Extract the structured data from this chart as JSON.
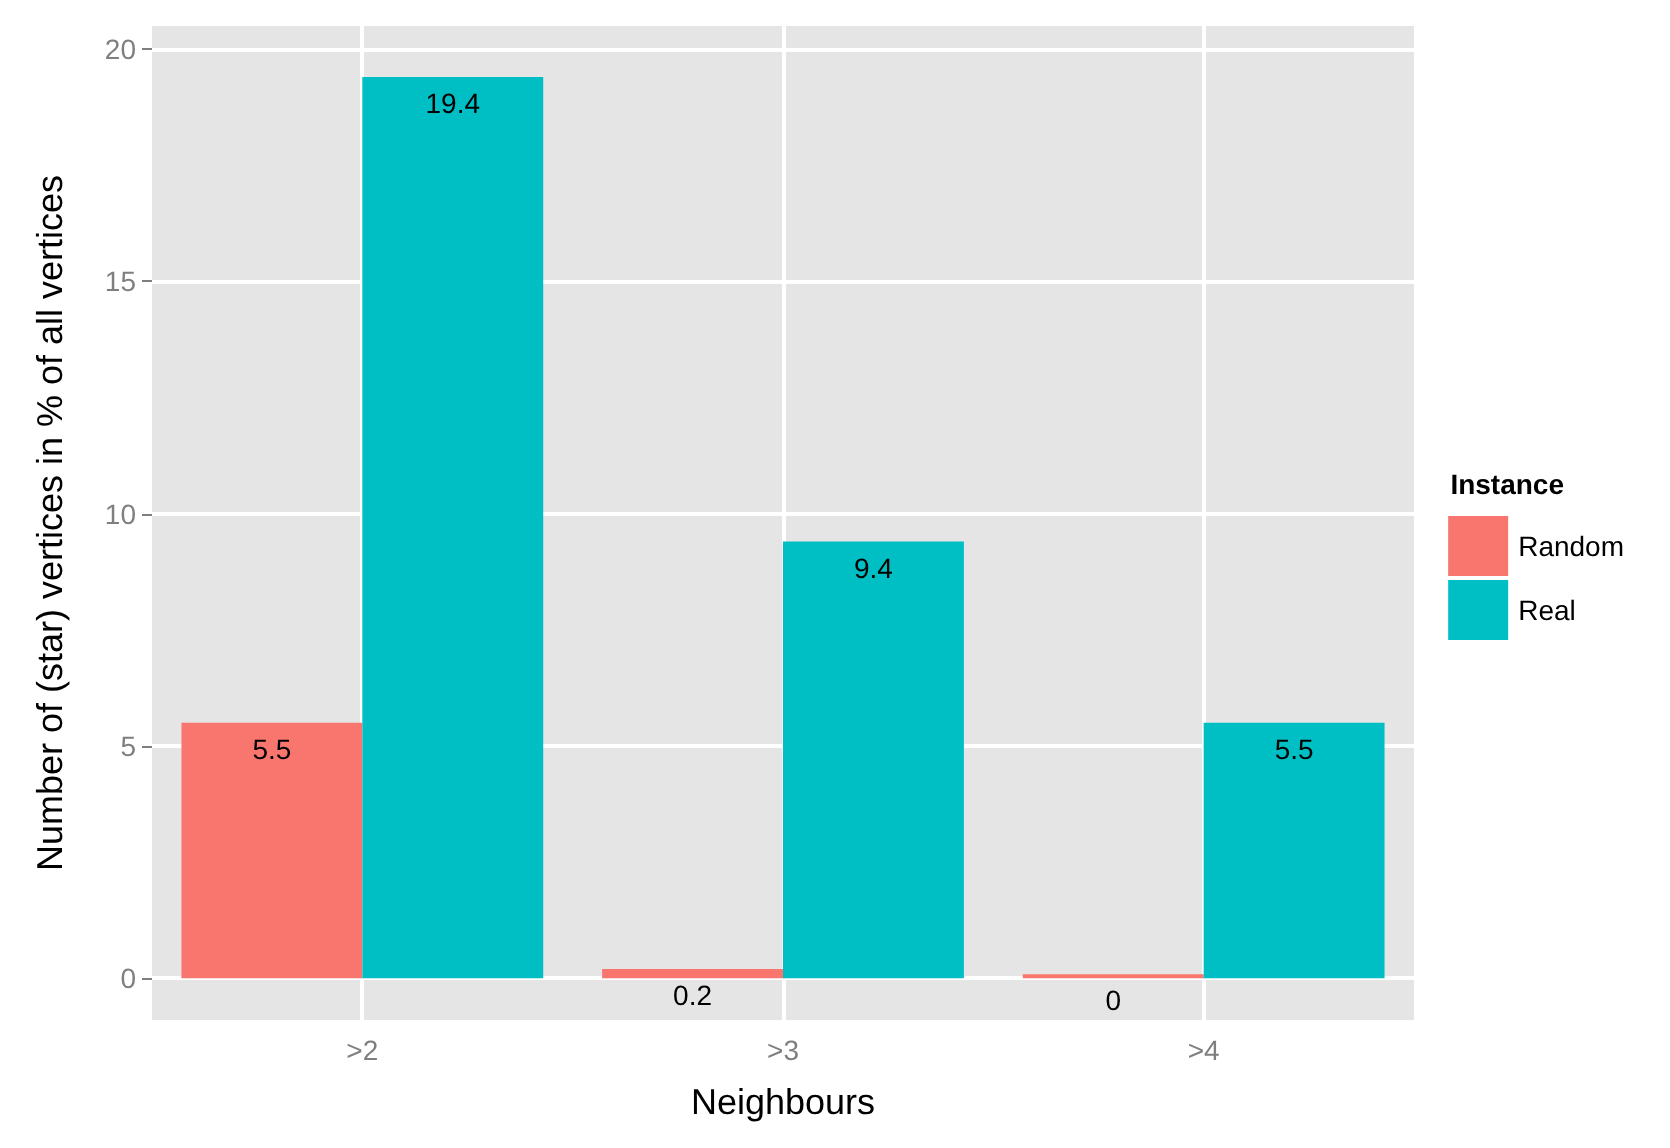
{
  "chart_data": {
    "type": "bar",
    "xlabel": "Neighbours",
    "ylabel": "Number of (star) vertices in % of all vertices",
    "legend_title": "Instance",
    "categories": [
      ">2",
      ">3",
      ">4"
    ],
    "series": [
      {
        "name": "Random",
        "color": "#f8766d",
        "values": [
          5.5,
          0.2,
          0
        ]
      },
      {
        "name": "Real",
        "color": "#00bfc4",
        "values": [
          19.4,
          9.4,
          5.5
        ]
      }
    ],
    "ylim": [
      -0.9,
      20.5
    ],
    "yticks": [
      0,
      5,
      10,
      15,
      20
    ],
    "grid": true,
    "legend": "right",
    "data_labels": true
  }
}
